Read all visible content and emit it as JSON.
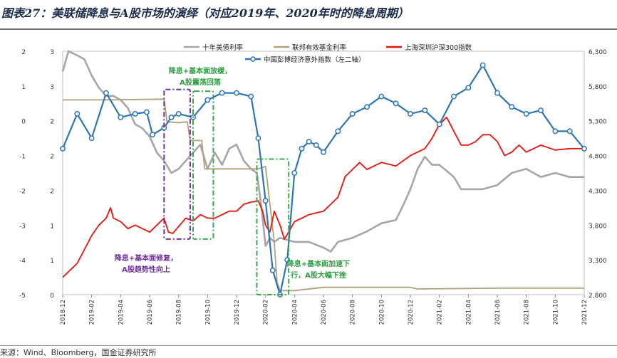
{
  "title": "图表27：美联储降息与A股市场的演绎（对应2019年、2020年时的降息周期）",
  "source": "来源：Wind、Bloomberg，国金证券研究所",
  "colors": {
    "treasury": "#a6a6a6",
    "fedfunds": "#b3a079",
    "csi300": "#e8140c",
    "surprise": "#2e75b6",
    "purple_box": "#7030a0",
    "green_box": "#38a84a",
    "annotation_green": "#2e9e44",
    "annotation_purple": "#7030a0"
  },
  "annotations": {
    "a1": [
      "降息+基本面放缓，",
      "A股震荡回落"
    ],
    "a2": [
      "降息+基本面修复，",
      "A股趋势性向上"
    ],
    "a3": [
      "降息+基本面加速下",
      "行，A股大幅下挫"
    ]
  },
  "chart_data": {
    "type": "line",
    "x_ticks": [
      "2018-12",
      "2019-02",
      "2019-04",
      "2019-06",
      "2019-08",
      "2019-10",
      "2019-12",
      "2020-02",
      "2020-04",
      "2020-06",
      "2020-08",
      "2020-10",
      "2020-12",
      "2021-02",
      "2021-04",
      "2021-06",
      "2021-08",
      "2021-10",
      "2021-12"
    ],
    "axes": {
      "left_outer": {
        "min": -5,
        "max": 2,
        "ticks": [
          "2",
          "1",
          "0",
          "-1",
          "-2",
          "-3",
          "-4",
          "-5"
        ]
      },
      "left_inner": {
        "min": 0,
        "max": 3,
        "ticks": [
          "3",
          "3",
          "2",
          "2",
          "2",
          "1",
          "1",
          "0"
        ]
      },
      "right": {
        "min": 2800,
        "max": 6300,
        "ticks": [
          "6,300",
          "5,800",
          "5,300",
          "4,800",
          "4,300",
          "3,800",
          "3,300",
          "2,800"
        ]
      }
    },
    "series": [
      {
        "name": "十年美债利率",
        "axis": "left_inner",
        "color": "#a6a6a6",
        "points": [
          [
            0,
            2.75
          ],
          [
            0.4,
            3.0
          ],
          [
            1,
            2.95
          ],
          [
            1.5,
            2.9
          ],
          [
            2,
            2.7
          ],
          [
            2.5,
            2.55
          ],
          [
            3,
            2.45
          ],
          [
            3.5,
            2.45
          ],
          [
            4,
            2.4
          ],
          [
            4.5,
            2.3
          ],
          [
            5,
            2.1
          ],
          [
            5.5,
            2.05
          ],
          [
            6,
            1.95
          ],
          [
            6.5,
            1.75
          ],
          [
            7,
            1.65
          ],
          [
            7.5,
            1.5
          ],
          [
            8,
            1.55
          ],
          [
            8.5,
            1.65
          ],
          [
            9,
            1.75
          ],
          [
            9.5,
            1.85
          ],
          [
            10,
            1.55
          ],
          [
            10.5,
            1.75
          ],
          [
            11,
            1.6
          ],
          [
            11.5,
            1.8
          ],
          [
            12,
            1.85
          ],
          [
            12.5,
            1.65
          ],
          [
            13,
            1.55
          ],
          [
            13.4,
            1.5
          ],
          [
            13.7,
            1.1
          ],
          [
            14,
            0.6
          ],
          [
            14.3,
            0.7
          ],
          [
            14.6,
            0.65
          ],
          [
            15,
            0.7
          ],
          [
            16,
            0.65
          ],
          [
            17,
            0.65
          ],
          [
            18,
            0.58
          ],
          [
            18.5,
            0.53
          ],
          [
            19,
            0.65
          ],
          [
            20,
            0.7
          ],
          [
            21,
            0.78
          ],
          [
            22,
            0.88
          ],
          [
            23,
            0.92
          ],
          [
            23.5,
            1.1
          ],
          [
            24,
            1.3
          ],
          [
            24.5,
            1.55
          ],
          [
            25,
            1.7
          ],
          [
            25.5,
            1.6
          ],
          [
            26,
            1.6
          ],
          [
            27,
            1.45
          ],
          [
            27.5,
            1.3
          ],
          [
            28,
            1.3
          ],
          [
            29,
            1.3
          ],
          [
            30,
            1.35
          ],
          [
            31,
            1.5
          ],
          [
            32,
            1.55
          ],
          [
            33,
            1.45
          ],
          [
            34,
            1.5
          ],
          [
            35,
            1.45
          ],
          [
            36,
            1.45
          ]
        ]
      },
      {
        "name": "联邦有效基金利率",
        "axis": "left_inner",
        "color": "#b3a079",
        "points": [
          [
            0,
            2.4
          ],
          [
            3,
            2.4
          ],
          [
            7,
            2.41
          ],
          [
            7.2,
            2.13
          ],
          [
            8,
            2.12
          ],
          [
            8.6,
            2.13
          ],
          [
            8.8,
            1.9
          ],
          [
            9.6,
            1.9
          ],
          [
            9.8,
            1.55
          ],
          [
            13.5,
            1.55
          ],
          [
            14,
            1.58
          ],
          [
            14.3,
            1.12
          ],
          [
            14.6,
            0.65
          ],
          [
            14.8,
            0.15
          ],
          [
            15,
            0.05
          ],
          [
            16,
            0.05
          ],
          [
            18,
            0.09
          ],
          [
            24,
            0.09
          ],
          [
            24.5,
            0.07
          ],
          [
            30,
            0.08
          ],
          [
            36,
            0.08
          ]
        ]
      },
      {
        "name": "上海深圳沪深300指数",
        "axis": "right",
        "color": "#e8140c",
        "points": [
          [
            0,
            3050
          ],
          [
            0.5,
            3150
          ],
          [
            1,
            3250
          ],
          [
            1.5,
            3450
          ],
          [
            2,
            3650
          ],
          [
            2.5,
            3800
          ],
          [
            3,
            3900
          ],
          [
            3.3,
            4050
          ],
          [
            3.5,
            3900
          ],
          [
            4,
            3850
          ],
          [
            4.5,
            3750
          ],
          [
            5,
            3800
          ],
          [
            5.5,
            3750
          ],
          [
            6,
            3700
          ],
          [
            6.5,
            3800
          ],
          [
            7,
            3900
          ],
          [
            7.3,
            3700
          ],
          [
            7.6,
            3680
          ],
          [
            8,
            3780
          ],
          [
            8.5,
            3900
          ],
          [
            9,
            3860
          ],
          [
            9.5,
            3950
          ],
          [
            10,
            3900
          ],
          [
            10.5,
            3900
          ],
          [
            11,
            3950
          ],
          [
            11.5,
            4000
          ],
          [
            12,
            4000
          ],
          [
            12.5,
            4100
          ],
          [
            13,
            4130
          ],
          [
            13.5,
            4150
          ],
          [
            13.8,
            4000
          ],
          [
            14,
            3800
          ],
          [
            14.3,
            3700
          ],
          [
            14.6,
            4000
          ],
          [
            15,
            3800
          ],
          [
            15.3,
            3600
          ],
          [
            15.6,
            3700
          ],
          [
            16,
            3850
          ],
          [
            17,
            3950
          ],
          [
            18,
            4000
          ],
          [
            18.5,
            4100
          ],
          [
            19,
            4200
          ],
          [
            19.5,
            4500
          ],
          [
            20,
            4600
          ],
          [
            20.5,
            4700
          ],
          [
            21,
            4600
          ],
          [
            22,
            4700
          ],
          [
            23,
            4650
          ],
          [
            24,
            4800
          ],
          [
            25,
            4900
          ],
          [
            25.5,
            5050
          ],
          [
            26,
            5250
          ],
          [
            26.5,
            5350
          ],
          [
            27,
            5150
          ],
          [
            27.5,
            4950
          ],
          [
            28,
            4950
          ],
          [
            28.5,
            5000
          ],
          [
            29,
            5100
          ],
          [
            29.5,
            5100
          ],
          [
            30,
            5000
          ],
          [
            30.5,
            4800
          ],
          [
            31,
            4850
          ],
          [
            31.5,
            4950
          ],
          [
            32,
            4850
          ],
          [
            33,
            4950
          ],
          [
            34,
            4880
          ],
          [
            35,
            4900
          ],
          [
            36,
            4900
          ]
        ]
      },
      {
        "name": "中国彭博经济意外指数（左二轴）",
        "axis": "left_outer",
        "color": "#2e75b6",
        "markers": true,
        "points": [
          [
            0,
            -0.8
          ],
          [
            1,
            0.2
          ],
          [
            2,
            -0.5
          ],
          [
            3,
            0.8
          ],
          [
            4,
            0.1
          ],
          [
            5,
            0.2
          ],
          [
            5.8,
            0.25
          ],
          [
            6.2,
            -0.4
          ],
          [
            7,
            -0.2
          ],
          [
            7.5,
            0.1
          ],
          [
            8,
            0.2
          ],
          [
            9,
            0.1
          ],
          [
            10,
            0.6
          ],
          [
            11,
            0.8
          ],
          [
            12,
            0.8
          ],
          [
            13,
            0.7
          ],
          [
            13.5,
            -0.5
          ],
          [
            14,
            -2.3
          ],
          [
            14.5,
            -4.3
          ],
          [
            15,
            -5.0
          ],
          [
            15.5,
            -4.0
          ],
          [
            16,
            -1.5
          ],
          [
            16.5,
            -0.8
          ],
          [
            17,
            -0.6
          ],
          [
            17.5,
            -0.7
          ],
          [
            18,
            -0.9
          ],
          [
            19,
            -0.3
          ],
          [
            20,
            0.2
          ],
          [
            21,
            0.4
          ],
          [
            22,
            0.7
          ],
          [
            23,
            0.5
          ],
          [
            24,
            0.2
          ],
          [
            25,
            0.3
          ],
          [
            26,
            -0.1
          ],
          [
            27,
            0.7
          ],
          [
            28,
            0.95
          ],
          [
            29,
            1.6
          ],
          [
            30,
            0.8
          ],
          [
            31,
            0.4
          ],
          [
            32,
            0.2
          ],
          [
            33,
            0.3
          ],
          [
            34,
            -0.3
          ],
          [
            35,
            -0.3
          ],
          [
            36,
            -0.8
          ]
        ]
      }
    ],
    "legend": [
      "十年美债利率",
      "联邦有效基金利率",
      "上海深圳沪深300指数",
      "中国彭博经济意外指数（左二轴）"
    ],
    "highlight_periods": [
      {
        "label": "降息+基本面修复，A股趋势性向上",
        "from": 7.0,
        "to": 8.8,
        "y_top": 0.9,
        "y_bottom": -3.4
      },
      {
        "label": "降息+基本面放缓，A股震荡回落",
        "from": 9.0,
        "to": 10.4,
        "y_top": 0.85,
        "y_bottom": -3.4
      },
      {
        "label": "降息+基本面加速下行，A股大幅下挫",
        "from": 13.4,
        "to": 15.6,
        "y_top": -1.1,
        "y_bottom": -5.0
      }
    ]
  }
}
